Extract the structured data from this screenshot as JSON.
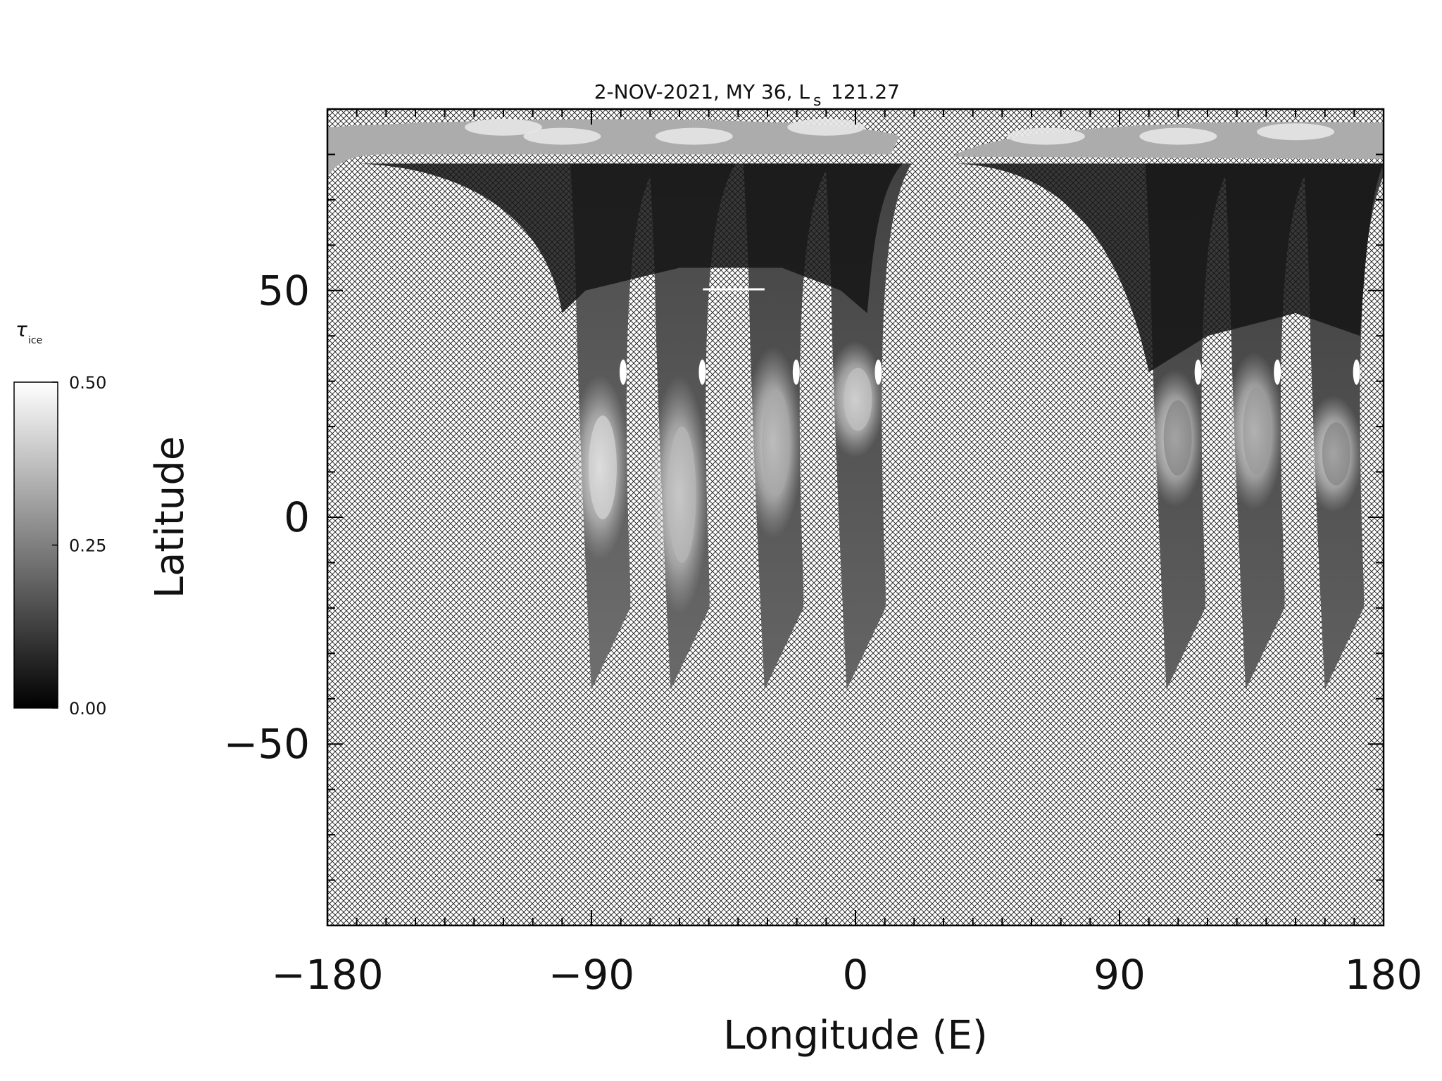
{
  "chart_data": {
    "type": "heatmap",
    "title": "2-NOV-2021, MY 36,  L",
    "title_subscript": "s",
    "title_value": "121.27",
    "xlabel": "Longitude (E)",
    "ylabel": "Latitude",
    "xlim": [
      -180,
      180
    ],
    "ylim": [
      -90,
      90
    ],
    "x_ticks": [
      {
        "value": -180,
        "label": "−180"
      },
      {
        "value": -90,
        "label": "−90"
      },
      {
        "value": 0,
        "label": "0"
      },
      {
        "value": 90,
        "label": "90"
      },
      {
        "value": 180,
        "label": "180"
      }
    ],
    "y_ticks": [
      {
        "value": 50,
        "label": "50"
      },
      {
        "value": 0,
        "label": "0"
      },
      {
        "value": -50,
        "label": "−50"
      }
    ],
    "x_minor_step": 10,
    "y_minor_step": 10,
    "no_data_pattern": "crosshatch",
    "colorbar": {
      "label": "τ",
      "label_subscript": "ice",
      "min": 0.0,
      "max": 0.5,
      "ticks": [
        {
          "value": 0.5,
          "label": "0.50"
        },
        {
          "value": 0.25,
          "label": "0.25"
        },
        {
          "value": 0.0,
          "label": "0.00"
        }
      ],
      "color_low": "#000000",
      "color_high": "#ffffff"
    },
    "swaths": [
      {
        "lon_south": -90,
        "lat_south": -38,
        "bright_lat": [
          0,
          22
        ],
        "bright_tau": 0.42,
        "base_tau": 0.26
      },
      {
        "lon_south": -63,
        "lat_south": -38,
        "bright_lat": [
          -10,
          20
        ],
        "bright_tau": 0.36,
        "base_tau": 0.24
      },
      {
        "lon_south": -31,
        "lat_south": -38,
        "bright_lat": [
          5,
          28
        ],
        "bright_tau": 0.33,
        "base_tau": 0.22
      },
      {
        "lon_south": -3,
        "lat_south": -38,
        "bright_lat": [
          20,
          32
        ],
        "bright_tau": 0.38,
        "base_tau": 0.22
      },
      {
        "lon_south": 106,
        "lat_south": -38,
        "bright_lat": [
          10,
          25
        ],
        "bright_tau": 0.26,
        "base_tau": 0.2
      },
      {
        "lon_south": 133,
        "lat_south": -38,
        "bright_lat": [
          10,
          28
        ],
        "bright_tau": 0.3,
        "base_tau": 0.2
      },
      {
        "lon_south": 160,
        "lat_south": -38,
        "bright_lat": [
          8,
          20
        ],
        "bright_tau": 0.26,
        "base_tau": 0.2
      }
    ],
    "polar_ice_lat_min": 78,
    "polar_ice_tau": 0.45
  }
}
